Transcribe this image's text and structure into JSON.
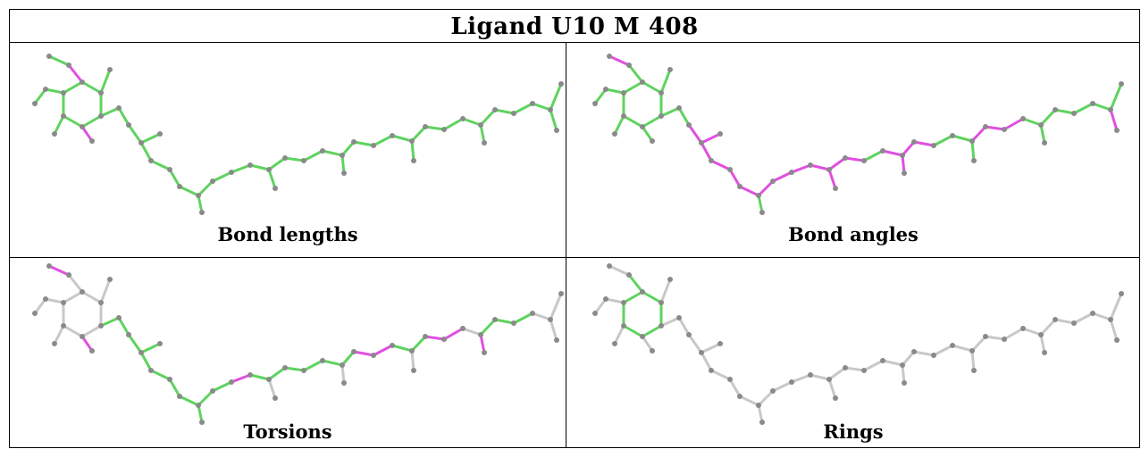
{
  "title": "Ligand U10 M 408",
  "panels": [
    {
      "caption": "Bond lengths"
    },
    {
      "caption": "Bond angles"
    },
    {
      "caption": "Torsions"
    },
    {
      "caption": "Rings"
    }
  ],
  "colors": {
    "ok": "#5fd35f",
    "outlier": "#e050e0",
    "neutral": "#c8c8c8",
    "atom": "#8a8a8a",
    "border": "#000000"
  }
}
